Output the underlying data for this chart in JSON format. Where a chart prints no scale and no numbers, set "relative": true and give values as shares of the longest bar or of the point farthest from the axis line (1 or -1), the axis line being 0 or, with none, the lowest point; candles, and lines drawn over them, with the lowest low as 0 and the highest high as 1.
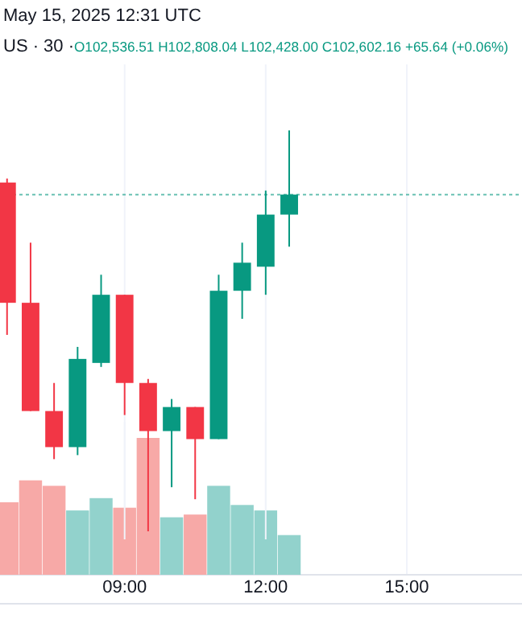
{
  "chart_data": [
    {
      "type": "candlestick",
      "relative": true,
      "annotations": [
        "May 15, 2025 12:31 UTC",
        "US · 30 ·",
        "O102,536.51 H102,808.04 L102,428.00 C102,602.16 +65.64 (+0.06%)"
      ],
      "x": [
        6.5,
        7,
        7.5,
        8,
        8.5,
        9,
        9.5,
        10,
        10.5,
        11,
        11.5,
        12,
        12.5
      ],
      "xlim": [
        6.35,
        17.45
      ],
      "xticks": [
        9,
        12,
        15
      ],
      "tick_labels": false,
      "grid": "x",
      "colors": [
        "#f23645",
        "#f23645",
        "#f23645",
        "#089981",
        "#089981",
        "#f23645",
        "#f23645",
        "#089981",
        "#f23645",
        "#089981",
        "#089981",
        "#089981",
        "#089981"
      ],
      "ohlc": [
        [
          0.87,
          0.88,
          0.49,
          0.57
        ],
        [
          0.57,
          0.72,
          0.3,
          0.3
        ],
        [
          0.3,
          0.37,
          0.18,
          0.21
        ],
        [
          0.21,
          0.46,
          0.19,
          0.43
        ],
        [
          0.42,
          0.64,
          0.41,
          0.59
        ],
        [
          0.59,
          0.59,
          0.29,
          0.37
        ],
        [
          0.37,
          0.38,
          0,
          0.25
        ],
        [
          0.25,
          0.33,
          0.11,
          0.31
        ],
        [
          0.31,
          0.31,
          0.08,
          0.23
        ],
        [
          0.23,
          0.64,
          0.23,
          0.6
        ],
        [
          0.6,
          0.72,
          0.53,
          0.67
        ],
        [
          0.66,
          0.85,
          0.59,
          0.79
        ],
        [
          0.79,
          1,
          0.71,
          0.84
        ]
      ],
      "ref_lines": [
        {
          "axis": "y",
          "value": 0.84,
          "color": "#089981",
          "line_style": "dotted"
        }
      ]
    },
    {
      "type": "bar",
      "relative": true,
      "x": [
        6.5,
        7,
        7.5,
        8,
        8.5,
        9,
        9.5,
        10,
        10.5,
        11,
        11.5,
        12,
        12.5
      ],
      "xlim": [
        6.35,
        17.45
      ],
      "xticks": [
        {
          "value": 9,
          "label": "09:00"
        },
        {
          "value": 12,
          "label": "12:00"
        },
        {
          "value": 15,
          "label": "15:00"
        }
      ],
      "grid": "x",
      "colors": [
        "#f7a9a7",
        "#f7a9a7",
        "#f7a9a7",
        "#92d2cc",
        "#92d2cc",
        "#f7a9a7",
        "#f7a9a7",
        "#92d2cc",
        "#f7a9a7",
        "#92d2cc",
        "#92d2cc",
        "#92d2cc",
        "#92d2cc"
      ],
      "values": [
        0.53,
        0.69,
        0.65,
        0.47,
        0.56,
        0.49,
        1,
        0.42,
        0.44,
        0.65,
        0.51,
        0.47,
        0.29
      ]
    }
  ]
}
